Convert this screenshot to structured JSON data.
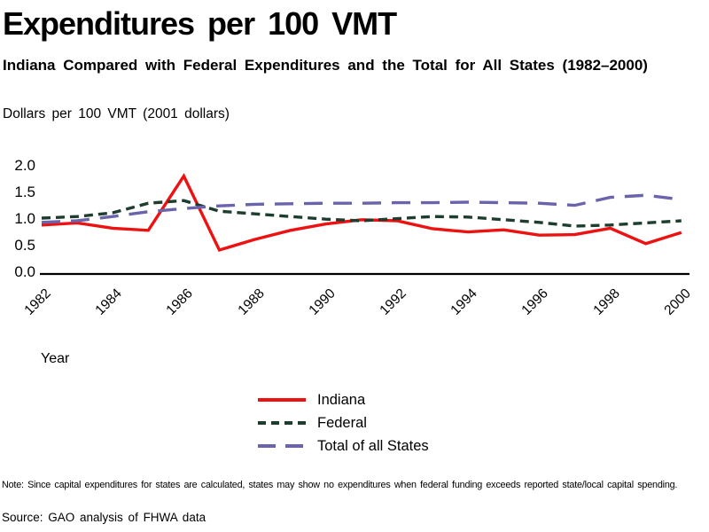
{
  "header": {
    "title": "Expenditures per 100 VMT",
    "subtitle": "Indiana Compared with Federal Expenditures and the Total for All States (1982–2000)"
  },
  "chart_data": {
    "type": "line",
    "title": "Expenditures per 100 VMT",
    "xlabel": "Year",
    "ylabel": "Dollars per 100 VMT (2001 dollars)",
    "ylim": [
      0.0,
      2.0
    ],
    "yticks": [
      "2.0",
      "1.5",
      "1.0",
      "0.5",
      "0.0"
    ],
    "xticks": [
      1982,
      1984,
      1986,
      1988,
      1990,
      1992,
      1994,
      1996,
      1998,
      2000
    ],
    "grid": false,
    "legend_position": "bottom-center",
    "axis_color": "#000000",
    "x": [
      1982,
      1983,
      1984,
      1985,
      1986,
      1987,
      1988,
      1989,
      1990,
      1991,
      1992,
      1993,
      1994,
      1995,
      1996,
      1997,
      1998,
      1999,
      2000
    ],
    "series": [
      {
        "name": "Indiana",
        "color": "#ed1111",
        "dash": "solid",
        "values": [
          0.92,
          0.96,
          0.86,
          0.82,
          1.84,
          0.45,
          0.65,
          0.82,
          0.94,
          1.02,
          1.0,
          0.85,
          0.79,
          0.83,
          0.73,
          0.74,
          0.86,
          0.57,
          0.78
        ]
      },
      {
        "name": "Federal",
        "color": "#1e3d2e",
        "dash": "short",
        "values": [
          1.05,
          1.08,
          1.15,
          1.33,
          1.38,
          1.18,
          1.13,
          1.08,
          1.03,
          1.0,
          1.04,
          1.08,
          1.07,
          1.02,
          0.97,
          0.9,
          0.92,
          0.96,
          1.0
        ]
      },
      {
        "name": "Total of all States",
        "color": "#6a64ac",
        "dash": "long",
        "values": [
          0.97,
          1.0,
          1.08,
          1.17,
          1.23,
          1.28,
          1.31,
          1.32,
          1.33,
          1.33,
          1.34,
          1.34,
          1.35,
          1.34,
          1.33,
          1.29,
          1.44,
          1.48,
          1.4
        ]
      }
    ]
  },
  "footer": {
    "note": "Note: Since capital expenditures for states are calculated, states may show no expenditures when federal funding exceeds reported state/local capital spending.",
    "source": "Source: GAO analysis of FHWA data"
  }
}
